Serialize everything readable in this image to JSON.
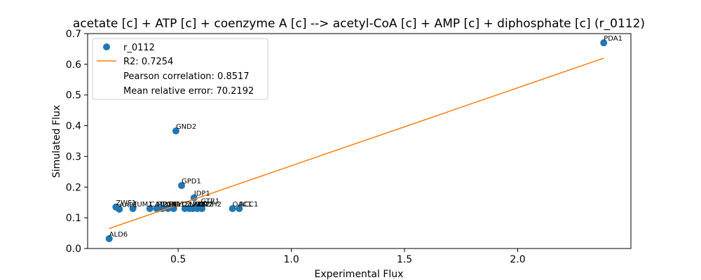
{
  "chart_data": {
    "type": "scatter",
    "title": "acetate [c] + ATP [c] + coenzyme A [c] --> acetyl-CoA [c] + AMP [c] + diphosphate [c] (r_0112)",
    "xlabel": "Experimental Flux",
    "ylabel": "Simulated Flux",
    "xlim": [
      0.1,
      2.5
    ],
    "ylim": [
      0.0,
      0.7
    ],
    "xticks": [
      0.5,
      1.0,
      1.5,
      2.0
    ],
    "xtick_labels": [
      "0.5",
      "1.0",
      "1.5",
      "2.0"
    ],
    "yticks": [
      0.0,
      0.1,
      0.2,
      0.3,
      0.4,
      0.5,
      0.6,
      0.7
    ],
    "ytick_labels": [
      "0.0",
      "0.1",
      "0.2",
      "0.3",
      "0.4",
      "0.5",
      "0.6",
      "0.7"
    ],
    "grid": false,
    "legend_position": "top-left",
    "colors": {
      "points": "#1f77b4",
      "fit_line": "#ff7f0e"
    },
    "series": [
      {
        "name": "r_0112",
        "kind": "scatter",
        "points": [
          {
            "x": 2.38,
            "y": 0.67,
            "label": "PDA1"
          },
          {
            "x": 0.49,
            "y": 0.383,
            "label": "GND2"
          },
          {
            "x": 0.515,
            "y": 0.205,
            "label": "GPD1"
          },
          {
            "x": 0.57,
            "y": 0.165,
            "label": "IDP1"
          },
          {
            "x": 0.6,
            "y": 0.14,
            "label": "GTR1"
          },
          {
            "x": 0.225,
            "y": 0.135,
            "label": "ZWF1"
          },
          {
            "x": 0.24,
            "y": 0.128,
            "label": "AAP1"
          },
          {
            "x": 0.3,
            "y": 0.13,
            "label": "FUM1"
          },
          {
            "x": 0.375,
            "y": 0.13,
            "label": "CAT2"
          },
          {
            "x": 0.405,
            "y": 0.13,
            "label": "MDH1"
          },
          {
            "x": 0.43,
            "y": 0.13,
            "label": "PGK1"
          },
          {
            "x": 0.455,
            "y": 0.13,
            "label": "TAL1"
          },
          {
            "x": 0.48,
            "y": 0.13,
            "label": "PYC2"
          },
          {
            "x": 0.53,
            "y": 0.13,
            "label": "ENO2"
          },
          {
            "x": 0.55,
            "y": 0.13,
            "label": "LAT1"
          },
          {
            "x": 0.565,
            "y": 0.13,
            "label": "PFK2"
          },
          {
            "x": 0.585,
            "y": 0.13,
            "label": "CIT2"
          },
          {
            "x": 0.605,
            "y": 0.13,
            "label": "SDH2"
          },
          {
            "x": 0.74,
            "y": 0.13,
            "label": "OAC1"
          },
          {
            "x": 0.77,
            "y": 0.13,
            "label": "ACC1"
          },
          {
            "x": 0.195,
            "y": 0.032,
            "label": "ALD6"
          }
        ]
      },
      {
        "name": "R2: 0.7254",
        "kind": "line",
        "x": [
          0.195,
          2.38
        ],
        "y": [
          0.065,
          0.62
        ]
      }
    ],
    "legend_entries": [
      {
        "text": "r_0112",
        "marker": "point"
      },
      {
        "text": "R2: 0.7254",
        "marker": "line"
      },
      {
        "text": "Pearson correlation: 0.8517",
        "marker": "none"
      },
      {
        "text": "Mean relative error: 70.2192",
        "marker": "none"
      }
    ]
  }
}
